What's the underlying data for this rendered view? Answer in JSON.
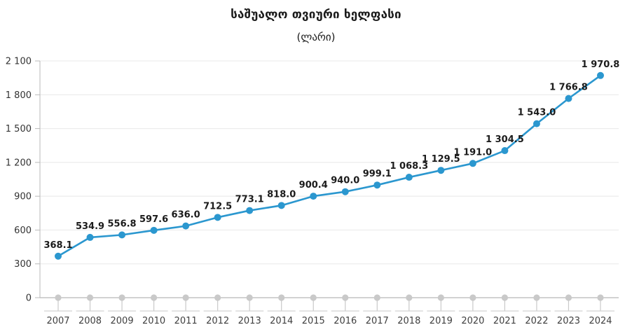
{
  "title": "საშუალო თვიური ხელფასი",
  "subtitle": "(ლარი)",
  "chart_data": {
    "type": "line",
    "title": "საშუალო თვიური ხელფასი",
    "subtitle": "(ლარი)",
    "categories": [
      "2007",
      "2008",
      "2009",
      "2010",
      "2011",
      "2012",
      "2013",
      "2014",
      "2015",
      "2016",
      "2017",
      "2018",
      "2019",
      "2020",
      "2021",
      "2022",
      "2023",
      "2024"
    ],
    "values": [
      368.1,
      534.9,
      556.8,
      597.6,
      636.0,
      712.5,
      773.1,
      818.0,
      900.4,
      940.0,
      999.1,
      1068.3,
      1129.5,
      1191.0,
      1304.5,
      1543.0,
      1766.8,
      1970.8
    ],
    "value_labels": [
      "368.1",
      "534.9",
      "556.8",
      "597.6",
      "636.0",
      "712.5",
      "773.1",
      "818.0",
      "900.4",
      "940.0",
      "999.1",
      "1 068.3",
      "1 129.5",
      "1 191.0",
      "1 304.5",
      "1 543.0",
      "1 766.8",
      "1 970.8"
    ],
    "ylim": [
      0,
      2100
    ],
    "ytick_values": [
      0,
      300,
      600,
      900,
      1200,
      1500,
      1800,
      2100
    ],
    "ytick_labels": [
      "0",
      "300",
      "600",
      "900",
      "1 200",
      "1 500",
      "1 800",
      "2 100"
    ],
    "grid": true,
    "legend": "none",
    "colors": {
      "line": "#2b97cf",
      "marker": "#2b97cf",
      "gridline": "#e8e8e8",
      "axis_line": "#b9b9b9",
      "zero_line": "#c4c4c4",
      "axis_dot": "#c9c9c9",
      "tick_bracket": "#d2d2d2",
      "y_label": "#333333",
      "x_label": "#3f3f3f",
      "data_label": "#1b1b1b"
    }
  }
}
